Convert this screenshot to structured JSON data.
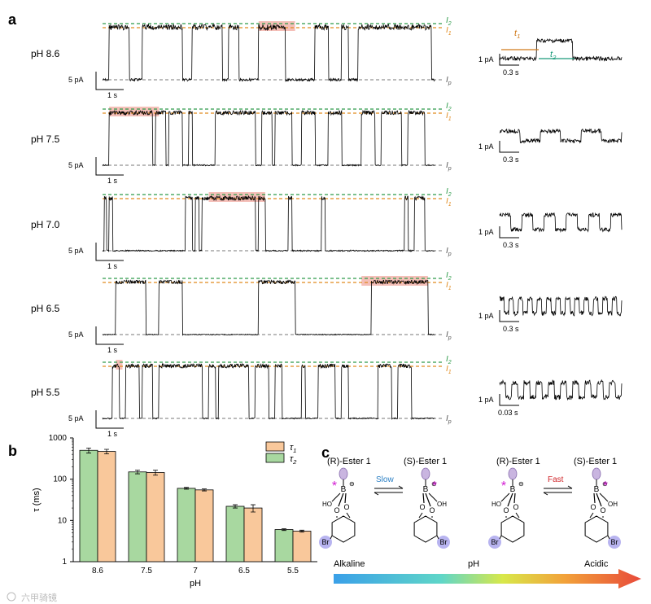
{
  "panels": {
    "a": "a",
    "b": "b",
    "c": "c"
  },
  "traces_section": {
    "level_labels": {
      "l2": "I",
      "l2_sub": "2",
      "l1": "I",
      "l1_sub": "1",
      "lp": "I",
      "lp_sub": "p"
    },
    "scale_left": {
      "current": "5 pA",
      "time": "1 s"
    },
    "zoom_annot": {
      "t1": "t",
      "t1_sub": "1",
      "t2": "t",
      "t2_sub": "2"
    },
    "colors": {
      "l2": "#2e9b4a",
      "l1": "#e08a1e",
      "lp": "#777777",
      "highlight": "#f2a9a0",
      "t1": "#d07a1a",
      "t2": "#1a9a7a"
    },
    "rows": [
      {
        "ph": "pH 8.6",
        "zoom_current": "1 pA",
        "zoom_time": "0.3 s"
      },
      {
        "ph": "pH 7.5",
        "zoom_current": "1 pA",
        "zoom_time": "0.3 s"
      },
      {
        "ph": "pH 7.0",
        "zoom_current": "1 pA",
        "zoom_time": "0.3 s"
      },
      {
        "ph": "pH 6.5",
        "zoom_current": "1 pA",
        "zoom_time": "0.3 s"
      },
      {
        "ph": "pH 5.5",
        "zoom_current": "1 pA",
        "zoom_time": "0.03 s"
      }
    ]
  },
  "chart_data": {
    "type": "bar",
    "xlabel": "pH",
    "ylabel": "τ (ms)",
    "yscale": "log",
    "ylim": [
      1,
      1000
    ],
    "yticks": [
      "1",
      "10",
      "100",
      "1000"
    ],
    "categories": [
      "8.6",
      "7.5",
      "7",
      "6.5",
      "5.5"
    ],
    "series": [
      {
        "name": "τ1",
        "label_base": "τ",
        "label_sub": "1",
        "color": "#f9c89b",
        "values": [
          470,
          145,
          55,
          20,
          5.5
        ],
        "errors": [
          60,
          20,
          3,
          4,
          0.3
        ]
      },
      {
        "name": "τ2",
        "label_base": "τ",
        "label_sub": "2",
        "color": "#a8d8a0",
        "values": [
          500,
          150,
          60,
          22,
          6
        ],
        "errors": [
          70,
          15,
          3,
          2,
          0.3
        ]
      }
    ]
  },
  "scheme": {
    "left": {
      "r_label": "(R)-Ester 1",
      "s_label": "(S)-Ester 1",
      "arrow": "Slow",
      "arrow_color": "#2a7fc4"
    },
    "right": {
      "r_label": "(R)-Ester 1",
      "s_label": "(S)-Ester 1",
      "arrow": "Fast",
      "arrow_color": "#d0262a"
    },
    "atoms": {
      "b": "B",
      "ho": "HO",
      "oh": "OH",
      "o": "O",
      "br": "Br",
      "minus": "⊖",
      "star": "*"
    },
    "gradient": {
      "left": "Alkaline",
      "center": "pH",
      "right": "Acidic"
    }
  },
  "watermark": "六甲骑镜"
}
